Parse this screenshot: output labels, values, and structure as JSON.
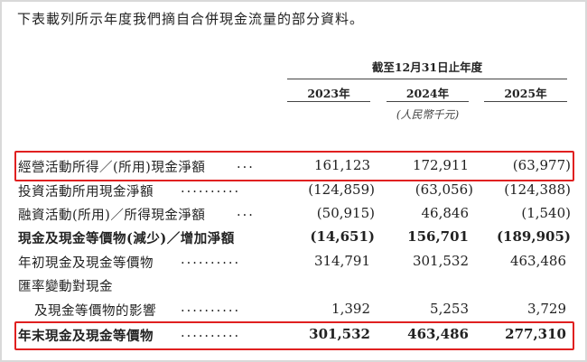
{
  "intro": "下表載列所示年度我們摘自合併現金流量的部分資料。",
  "table": {
    "period_header": "截至12月31日止年度",
    "years": [
      "2023年",
      "2024年",
      "2025年"
    ],
    "units": "(人民幣千元)",
    "rows": [
      {
        "label": "經營活動所得／(所用)現金淨額",
        "dots": "...",
        "values": [
          "161,123",
          "172,911",
          "(63,977)"
        ],
        "bold": false,
        "highlighted": true
      },
      {
        "label": "投資活動所用現金淨額",
        "dots": "..........",
        "values": [
          "(124,859)",
          "(63,056)",
          "(124,388)"
        ],
        "bold": false,
        "highlighted": false
      },
      {
        "label": "融資活動(所用)／所得現金淨額",
        "dots": "...",
        "values": [
          "(50,915)",
          "46,846",
          "(1,540)"
        ],
        "bold": false,
        "highlighted": false
      },
      {
        "label": "現金及現金等價物(減少)／增加淨額",
        "dots": "",
        "values": [
          "(14,651)",
          "156,701",
          "(189,905)"
        ],
        "bold": true,
        "highlighted": false
      },
      {
        "label": "年初現金及現金等價物",
        "dots": "..........",
        "values": [
          "314,791",
          "301,532",
          "463,486"
        ],
        "bold": false,
        "highlighted": false
      },
      {
        "label": "匯率變動對現金",
        "dots": "",
        "values": [
          "",
          "",
          ""
        ],
        "bold": false,
        "highlighted": false
      },
      {
        "label": "及現金等價物的影響",
        "dots": "..........",
        "values": [
          "1,392",
          "5,253",
          "3,729"
        ],
        "bold": false,
        "highlighted": false
      },
      {
        "label": "年末現金及現金等價物",
        "dots": "..........",
        "values": [
          "301,532",
          "463,486",
          "277,310"
        ],
        "bold": true,
        "highlighted": true
      }
    ]
  },
  "highlight_color": "#e02020"
}
